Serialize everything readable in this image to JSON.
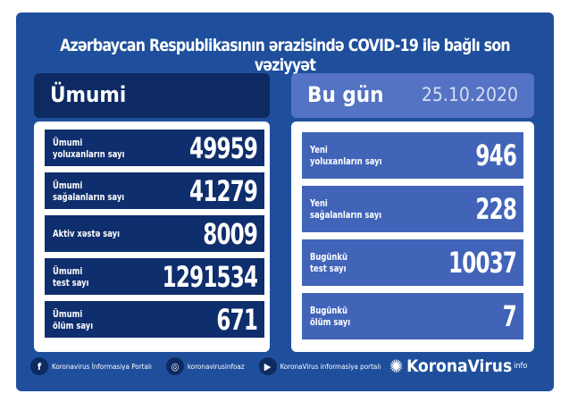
{
  "title": "Azərbaycan Respublikasının ərazisində COVID-19 ilə bağlı son vəziyyət",
  "total": {
    "header": "Ümumi",
    "rows": [
      {
        "label1": "Ümumi",
        "label2": "yoluxanların sayı",
        "value": "49959"
      },
      {
        "label1": "Ümumi",
        "label2": "sağalanların sayı",
        "value": "41279"
      },
      {
        "label1": "Aktiv xəstə sayı",
        "label2": "",
        "value": "8009"
      },
      {
        "label1": "Ümumi",
        "label2": "test sayı",
        "value": "1291534"
      },
      {
        "label1": "Ümumi",
        "label2": "ölüm sayı",
        "value": "671"
      }
    ]
  },
  "today": {
    "header": "Bu gün",
    "date": "25.10.2020",
    "rows": [
      {
        "label1": "Yeni",
        "label2": "yoluxanların sayı",
        "value": "946"
      },
      {
        "label1": "Yeni",
        "label2": "sağalanların sayı",
        "value": "228"
      },
      {
        "label1": "Bugünkü",
        "label2": "test sayı",
        "value": "10037"
      },
      {
        "label1": "Bugünkü",
        "label2": "ölüm sayı",
        "value": "7"
      }
    ]
  },
  "footer": {
    "facebook": "Koronavirus İnformasiya Portalı",
    "instagram": "koronavirusinfoaz",
    "youtube": "KoronaVirus informasiya portalı",
    "brand": "KoronaVirus",
    "brand_sup": "info"
  },
  "colors": {
    "background": "#1f4f9c",
    "total_rows": "#0f2e6d",
    "today_rows": "#4164b9"
  }
}
